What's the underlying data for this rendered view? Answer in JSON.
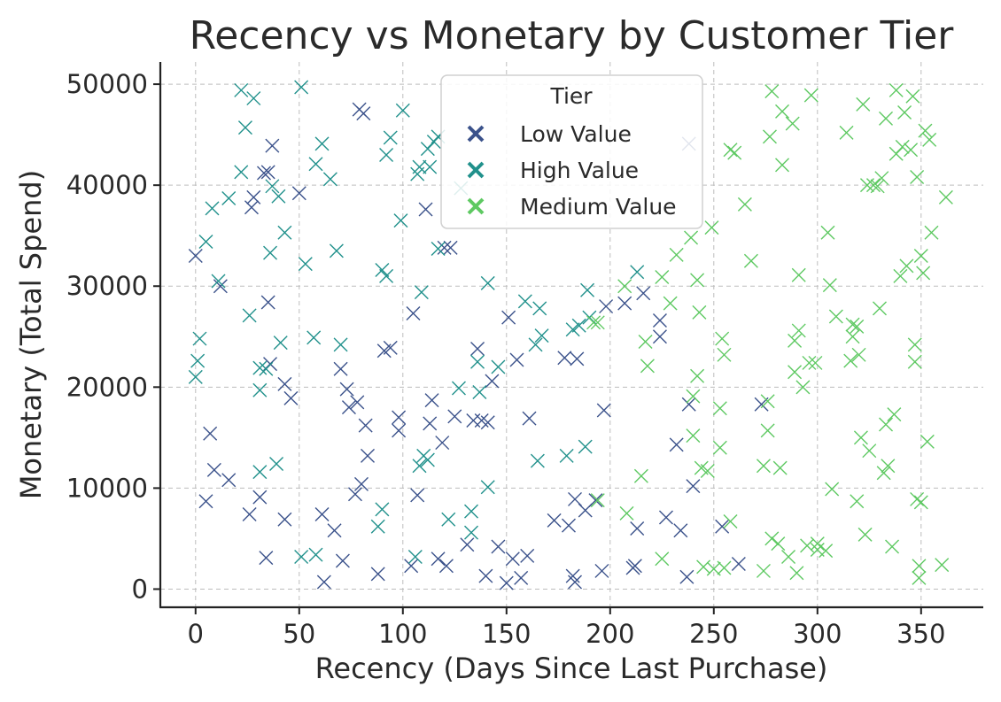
{
  "chart_data": {
    "type": "scatter",
    "title": "Recency vs Monetary by Customer Tier",
    "xlabel": "Recency (Days Since Last Purchase)",
    "ylabel": "Monetary (Total Spend)",
    "xlim": [
      -17,
      380
    ],
    "ylim": [
      -1800,
      52200
    ],
    "x_ticks": [
      0,
      50,
      100,
      150,
      200,
      250,
      300,
      350
    ],
    "y_ticks": [
      0,
      10000,
      20000,
      30000,
      40000,
      50000
    ],
    "grid": true,
    "marker": "x",
    "legend": {
      "title": "Tier",
      "position": "top-center"
    },
    "series": [
      {
        "name": "Low Value",
        "color": "#3b528b",
        "points": [
          [
            0,
            33000
          ],
          [
            7,
            15400
          ],
          [
            9,
            11800
          ],
          [
            12,
            30000
          ],
          [
            16,
            10800
          ],
          [
            5,
            8700
          ],
          [
            26,
            7400
          ],
          [
            27,
            37800
          ],
          [
            28,
            38800
          ],
          [
            31,
            9100
          ],
          [
            33,
            41200
          ],
          [
            35,
            41300
          ],
          [
            35,
            28400
          ],
          [
            34,
            3100
          ],
          [
            36,
            22300
          ],
          [
            37,
            43900
          ],
          [
            43,
            20300
          ],
          [
            43,
            6900
          ],
          [
            46,
            18900
          ],
          [
            50,
            39200
          ],
          [
            61,
            7400
          ],
          [
            62,
            700
          ],
          [
            67,
            5800
          ],
          [
            71,
            2800
          ],
          [
            70,
            21800
          ],
          [
            73,
            19800
          ],
          [
            74,
            18000
          ],
          [
            77,
            9400
          ],
          [
            78,
            18500
          ],
          [
            79,
            47500
          ],
          [
            80,
            10400
          ],
          [
            81,
            47100
          ],
          [
            82,
            16200
          ],
          [
            83,
            13200
          ],
          [
            88,
            1500
          ],
          [
            91,
            23600
          ],
          [
            94,
            23900
          ],
          [
            98,
            17000
          ],
          [
            98,
            15700
          ],
          [
            104,
            2300
          ],
          [
            105,
            27300
          ],
          [
            107,
            9300
          ],
          [
            111,
            37600
          ],
          [
            113,
            16400
          ],
          [
            114,
            18700
          ],
          [
            117,
            3000
          ],
          [
            119,
            14500
          ],
          [
            120,
            33800
          ],
          [
            121,
            2300
          ],
          [
            123,
            33800
          ],
          [
            125,
            17100
          ],
          [
            131,
            4400
          ],
          [
            134,
            16700
          ],
          [
            136,
            23800
          ],
          [
            138,
            16700
          ],
          [
            140,
            1300
          ],
          [
            141,
            16500
          ],
          [
            143,
            20600
          ],
          [
            146,
            4200
          ],
          [
            150,
            600
          ],
          [
            151,
            26900
          ],
          [
            153,
            3000
          ],
          [
            155,
            22700
          ],
          [
            157,
            1100
          ],
          [
            160,
            3300
          ],
          [
            161,
            16900
          ],
          [
            173,
            6800
          ],
          [
            178,
            22900
          ],
          [
            180,
            6300
          ],
          [
            182,
            1300
          ],
          [
            183,
            700
          ],
          [
            183,
            8900
          ],
          [
            184,
            22800
          ],
          [
            188,
            7800
          ],
          [
            193,
            8800
          ],
          [
            196,
            1800
          ],
          [
            197,
            17700
          ],
          [
            198,
            28000
          ],
          [
            207,
            28300
          ],
          [
            211,
            2100
          ],
          [
            212,
            2300
          ],
          [
            213,
            6000
          ],
          [
            216,
            29300
          ],
          [
            224,
            26600
          ],
          [
            224,
            25000
          ],
          [
            227,
            7100
          ],
          [
            232,
            14300
          ],
          [
            234,
            5800
          ],
          [
            237,
            1200
          ],
          [
            238,
            18300
          ],
          [
            238,
            44100
          ],
          [
            240,
            10200
          ],
          [
            254,
            6200
          ],
          [
            262,
            2500
          ],
          [
            273,
            18300
          ]
        ]
      },
      {
        "name": "High Value",
        "color": "#21918c",
        "points": [
          [
            0,
            21000
          ],
          [
            1,
            22600
          ],
          [
            2,
            24800
          ],
          [
            5,
            34400
          ],
          [
            8,
            37700
          ],
          [
            11,
            30500
          ],
          [
            16,
            38700
          ],
          [
            22,
            41300
          ],
          [
            22,
            49400
          ],
          [
            24,
            45700
          ],
          [
            26,
            27100
          ],
          [
            28,
            48600
          ],
          [
            31,
            19700
          ],
          [
            31,
            21900
          ],
          [
            31,
            11600
          ],
          [
            34,
            21800
          ],
          [
            36,
            33300
          ],
          [
            37,
            39900
          ],
          [
            39,
            12400
          ],
          [
            40,
            38900
          ],
          [
            41,
            24400
          ],
          [
            43,
            35300
          ],
          [
            51,
            49700
          ],
          [
            51,
            3200
          ],
          [
            53,
            32200
          ],
          [
            57,
            24900
          ],
          [
            58,
            3400
          ],
          [
            58,
            42100
          ],
          [
            61,
            44100
          ],
          [
            65,
            40600
          ],
          [
            68,
            33500
          ],
          [
            70,
            24200
          ],
          [
            88,
            6200
          ],
          [
            90,
            31600
          ],
          [
            90,
            7900
          ],
          [
            92,
            43000
          ],
          [
            92,
            31000
          ],
          [
            94,
            44700
          ],
          [
            99,
            36500
          ],
          [
            100,
            47400
          ],
          [
            106,
            3200
          ],
          [
            107,
            41100
          ],
          [
            108,
            12200
          ],
          [
            108,
            41800
          ],
          [
            109,
            29400
          ],
          [
            110,
            13200
          ],
          [
            112,
            12800
          ],
          [
            112,
            43600
          ],
          [
            113,
            41800
          ],
          [
            115,
            44300
          ],
          [
            117,
            33700
          ],
          [
            117,
            44800
          ],
          [
            122,
            6900
          ],
          [
            127,
            19900
          ],
          [
            128,
            39700
          ],
          [
            133,
            5600
          ],
          [
            133,
            7700
          ],
          [
            136,
            22500
          ],
          [
            137,
            19500
          ],
          [
            141,
            30300
          ],
          [
            141,
            10100
          ],
          [
            146,
            22000
          ],
          [
            159,
            28500
          ],
          [
            164,
            24200
          ],
          [
            165,
            12700
          ],
          [
            166,
            27800
          ],
          [
            167,
            25100
          ],
          [
            179,
            13200
          ],
          [
            182,
            25700
          ],
          [
            185,
            26100
          ],
          [
            188,
            14100
          ],
          [
            189,
            29600
          ],
          [
            190,
            26900
          ],
          [
            213,
            31400
          ]
        ]
      },
      {
        "name": "Medium Value",
        "color": "#5ec962",
        "points": [
          [
            194,
            8800
          ],
          [
            192,
            26400
          ],
          [
            194,
            26400
          ],
          [
            208,
            7500
          ],
          [
            207,
            30000
          ],
          [
            215,
            11200
          ],
          [
            217,
            24500
          ],
          [
            218,
            22100
          ],
          [
            225,
            3000
          ],
          [
            225,
            30900
          ],
          [
            229,
            28300
          ],
          [
            232,
            33100
          ],
          [
            239,
            34800
          ],
          [
            240,
            15200
          ],
          [
            240,
            19100
          ],
          [
            242,
            21100
          ],
          [
            242,
            30600
          ],
          [
            243,
            27400
          ],
          [
            244,
            12000
          ],
          [
            245,
            2200
          ],
          [
            247,
            11700
          ],
          [
            249,
            35800
          ],
          [
            250,
            2000
          ],
          [
            253,
            17900
          ],
          [
            253,
            14000
          ],
          [
            254,
            24800
          ],
          [
            255,
            23200
          ],
          [
            255,
            2100
          ],
          [
            258,
            6700
          ],
          [
            258,
            43500
          ],
          [
            260,
            43200
          ],
          [
            265,
            38100
          ],
          [
            268,
            32500
          ],
          [
            274,
            1800
          ],
          [
            274,
            12200
          ],
          [
            276,
            15700
          ],
          [
            276,
            18600
          ],
          [
            277,
            44800
          ],
          [
            278,
            49300
          ],
          [
            278,
            5000
          ],
          [
            281,
            4500
          ],
          [
            282,
            12000
          ],
          [
            283,
            47300
          ],
          [
            283,
            42000
          ],
          [
            286,
            3200
          ],
          [
            288,
            46100
          ],
          [
            289,
            21500
          ],
          [
            289,
            24600
          ],
          [
            290,
            1600
          ],
          [
            291,
            25600
          ],
          [
            291,
            31100
          ],
          [
            293,
            20000
          ],
          [
            295,
            4300
          ],
          [
            296,
            22400
          ],
          [
            297,
            48900
          ],
          [
            299,
            22400
          ],
          [
            300,
            3900
          ],
          [
            300,
            4500
          ],
          [
            304,
            3800
          ],
          [
            305,
            35300
          ],
          [
            306,
            30100
          ],
          [
            307,
            9900
          ],
          [
            309,
            27000
          ],
          [
            314,
            45200
          ],
          [
            316,
            22600
          ],
          [
            317,
            25000
          ],
          [
            317,
            26200
          ],
          [
            319,
            26000
          ],
          [
            319,
            8700
          ],
          [
            320,
            23200
          ],
          [
            321,
            15000
          ],
          [
            322,
            48000
          ],
          [
            323,
            5400
          ],
          [
            324,
            40000
          ],
          [
            325,
            13700
          ],
          [
            327,
            40000
          ],
          [
            329,
            39900
          ],
          [
            330,
            27800
          ],
          [
            331,
            40700
          ],
          [
            332,
            11500
          ],
          [
            333,
            46600
          ],
          [
            333,
            16300
          ],
          [
            334,
            12200
          ],
          [
            336,
            4200
          ],
          [
            337,
            17300
          ],
          [
            338,
            43100
          ],
          [
            338,
            49400
          ],
          [
            340,
            31000
          ],
          [
            341,
            43800
          ],
          [
            342,
            47200
          ],
          [
            343,
            32000
          ],
          [
            345,
            43500
          ],
          [
            346,
            48800
          ],
          [
            347,
            24200
          ],
          [
            347,
            22500
          ],
          [
            348,
            8900
          ],
          [
            348,
            40800
          ],
          [
            349,
            1100
          ],
          [
            349,
            2300
          ],
          [
            350,
            8600
          ],
          [
            350,
            33000
          ],
          [
            351,
            31300
          ],
          [
            352,
            45400
          ],
          [
            353,
            14600
          ],
          [
            354,
            44500
          ],
          [
            355,
            35300
          ],
          [
            360,
            2400
          ],
          [
            362,
            38800
          ]
        ]
      }
    ]
  }
}
